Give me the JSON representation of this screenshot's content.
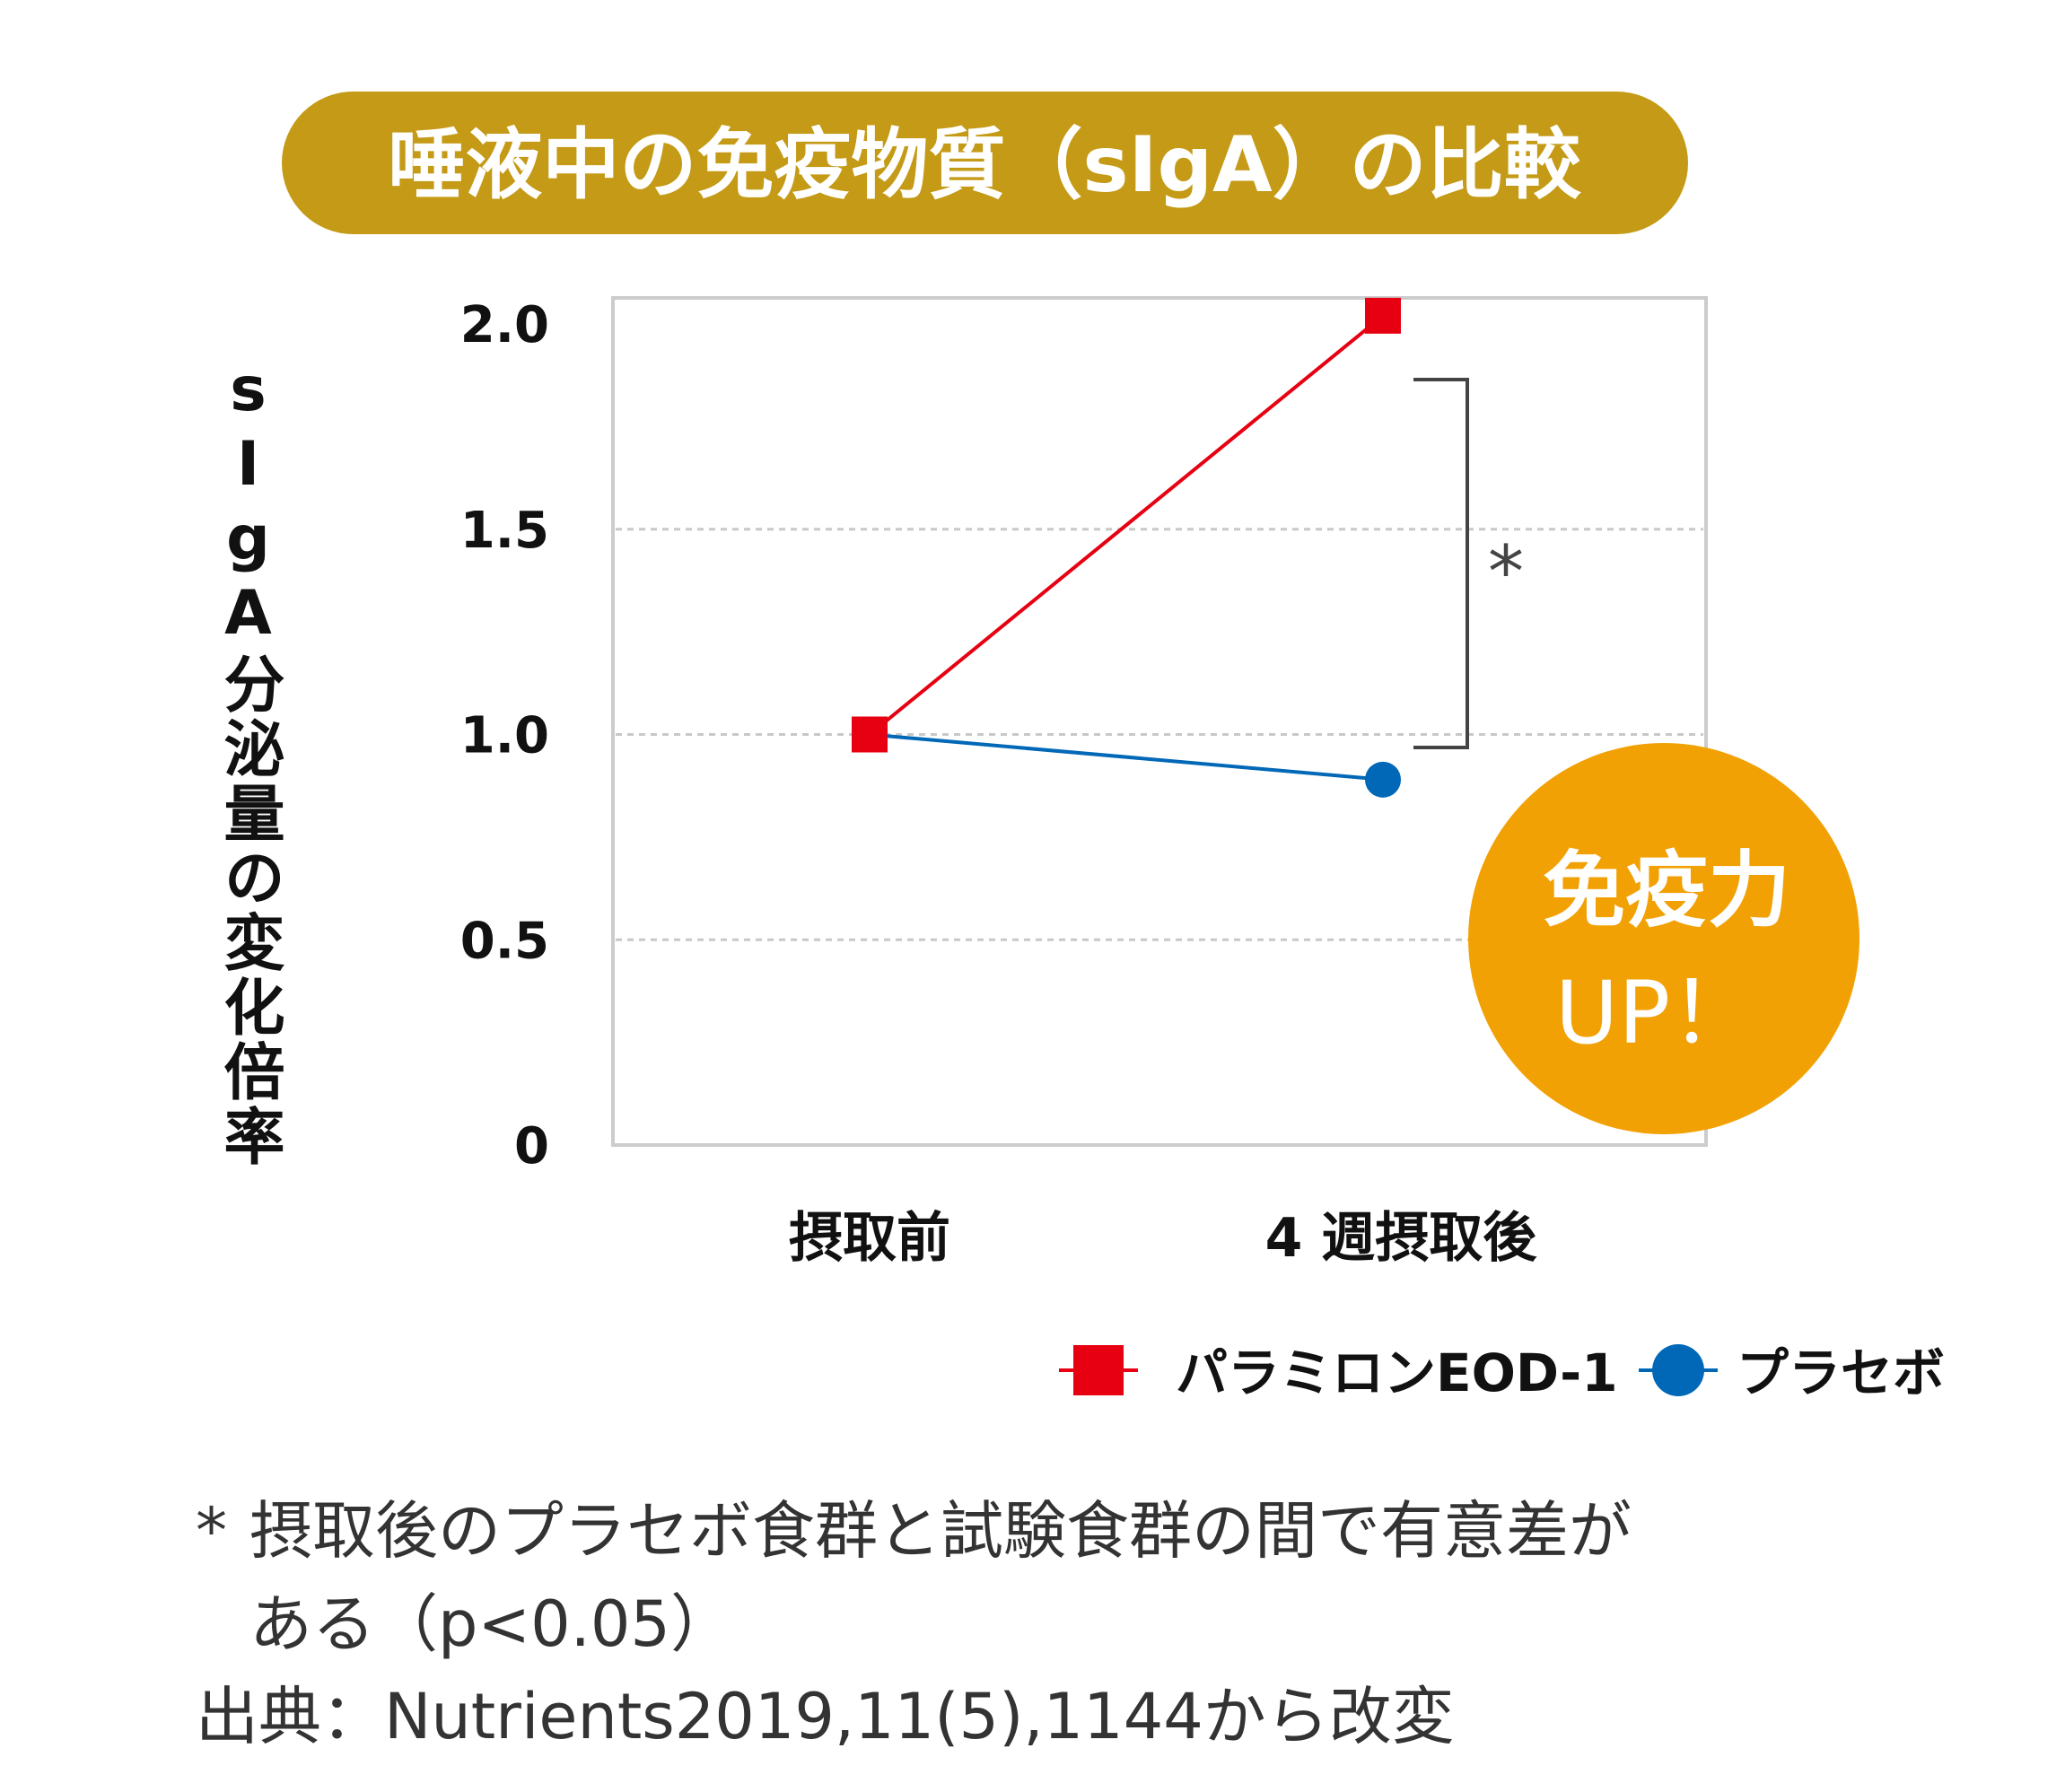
{
  "title": "唾液中の免疫物質（sIgA）の比較",
  "colors": {
    "title_bg": "#c49a16",
    "red": "#e60012",
    "blue": "#0068b7",
    "badge": "#f2a104",
    "grid": "#c8c8c8"
  },
  "badge": {
    "line1": "免疫力",
    "line2": "UP！"
  },
  "significance": "*",
  "chart_data": {
    "type": "line",
    "title": "唾液中の免疫物質（sIgA）の比較",
    "xlabel": "",
    "ylabel": "sIgA分泌量の変化倍率",
    "categories": [
      "摂取前",
      "4 週摂取後"
    ],
    "yticks": [
      "2.0",
      "1.5",
      "1.0",
      "0.5",
      "0"
    ],
    "ytick_values": [
      2.0,
      1.5,
      1.0,
      0.5,
      0
    ],
    "ylim": [
      0,
      2.0
    ],
    "grid": "horizontal dashed",
    "legend_position": "bottom-right",
    "series": [
      {
        "name": "パラミロンEOD-1",
        "marker": "square",
        "values": [
          1.0,
          2.02
        ]
      },
      {
        "name": "プラセボ",
        "marker": "circle",
        "values": [
          1.0,
          0.89
        ]
      }
    ]
  },
  "footnotes": {
    "star": "*",
    "line1": "摂取後のプラセボ食群と試験食群の間で有意差が",
    "line2": "ある（p<0.05）",
    "source": "出典：Nutrients2019,11(5),1144から改変"
  }
}
